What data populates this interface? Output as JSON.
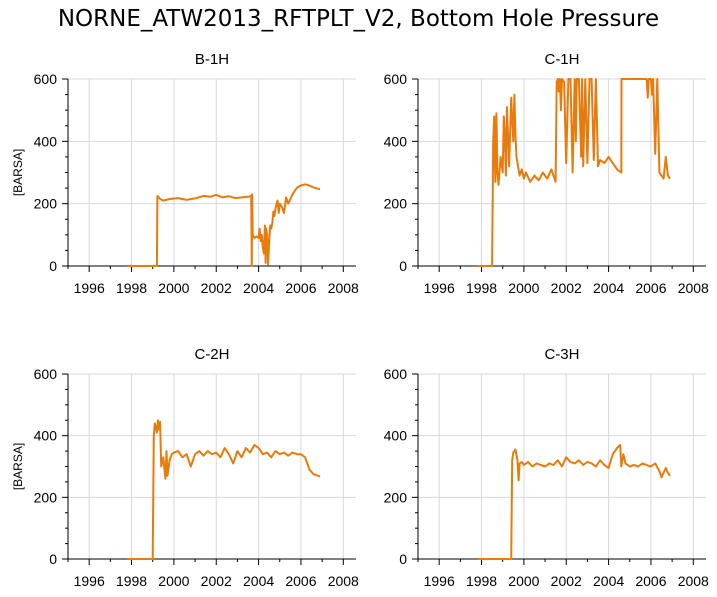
{
  "title": "NORNE_ATW2013_RFTPLT_V2, Bottom Hole Pressure",
  "colors": {
    "series": "#e87b0c",
    "grid": "#d9d9d9",
    "axis": "#000000"
  },
  "chart_data": [
    {
      "type": "line",
      "title": "B-1H",
      "ylabel": "[BARSA]",
      "xlim": [
        1995,
        2008.6
      ],
      "ylim": [
        0,
        600
      ],
      "xticks": [
        1996,
        1998,
        2000,
        2002,
        2004,
        2006,
        2008
      ],
      "yticks": [
        0,
        200,
        400,
        600
      ],
      "grid": true,
      "series": [
        {
          "x": [
            1997.8,
            1999.2,
            1999.22,
            1999.35,
            1999.5,
            1999.8,
            2000.2,
            2000.6,
            2001.0,
            2001.4,
            2001.7,
            2002.0,
            2002.3,
            2002.6,
            2002.9,
            2003.2,
            2003.5,
            2003.65,
            2003.68,
            2003.7,
            2003.72,
            2003.8,
            2003.9,
            2004.0,
            2004.05,
            2004.1,
            2004.15,
            2004.2,
            2004.25,
            2004.3,
            2004.33,
            2004.36,
            2004.4,
            2004.45,
            2004.5,
            2004.55,
            2004.6,
            2004.65,
            2004.7,
            2004.75,
            2004.8,
            2004.85,
            2004.9,
            2004.95,
            2005.0,
            2005.1,
            2005.2,
            2005.3,
            2005.4,
            2005.5,
            2005.6,
            2005.7,
            2005.8,
            2005.9,
            2006.0,
            2006.2,
            2006.4,
            2006.6,
            2006.8,
            2006.9
          ],
          "y": [
            0,
            0,
            225,
            215,
            210,
            215,
            218,
            212,
            217,
            225,
            222,
            228,
            220,
            224,
            218,
            220,
            222,
            225,
            0,
            230,
            100,
            90,
            95,
            90,
            120,
            80,
            100,
            60,
            40,
            130,
            10,
            120,
            100,
            5,
            80,
            130,
            120,
            140,
            175,
            160,
            185,
            200,
            210,
            170,
            200,
            190,
            170,
            220,
            200,
            215,
            230,
            240,
            250,
            255,
            258,
            262,
            258,
            252,
            248,
            246
          ]
        }
      ]
    },
    {
      "type": "line",
      "title": "C-1H",
      "ylabel": "",
      "xlim": [
        1995,
        2008.6
      ],
      "ylim": [
        0,
        600
      ],
      "xticks": [
        1996,
        1998,
        2000,
        2002,
        2004,
        2006,
        2008
      ],
      "yticks": [
        0,
        200,
        400,
        600
      ],
      "grid": true,
      "series": [
        {
          "x": [
            1997.8,
            1998.5,
            1998.55,
            1998.6,
            1998.65,
            1998.7,
            1998.75,
            1998.8,
            1998.9,
            1999.0,
            1999.05,
            1999.1,
            1999.15,
            1999.2,
            1999.25,
            1999.3,
            1999.4,
            1999.5,
            1999.55,
            1999.6,
            1999.65,
            1999.7,
            1999.8,
            1999.9,
            2000.0,
            2000.1,
            2000.3,
            2000.5,
            2000.7,
            2000.9,
            2001.1,
            2001.3,
            2001.5,
            2001.55,
            2001.6,
            2001.65,
            2001.7,
            2001.75,
            2001.8,
            2001.9,
            2002.0,
            2002.1,
            2002.2,
            2002.3,
            2002.4,
            2002.45,
            2002.5,
            2002.6,
            2002.7,
            2002.75,
            2002.8,
            2002.9,
            2003.0,
            2003.1,
            2003.2,
            2003.3,
            2003.4,
            2003.5,
            2003.6,
            2003.8,
            2004.0,
            2004.2,
            2004.4,
            2004.6,
            2004.61,
            2004.8,
            2005.0,
            2005.2,
            2005.4,
            2005.6,
            2005.8,
            2005.85,
            2005.9,
            2006.0,
            2006.05,
            2006.1,
            2006.2,
            2006.3,
            2006.4,
            2006.5,
            2006.6,
            2006.7,
            2006.8,
            2006.9
          ],
          "y": [
            0,
            0,
            400,
            480,
            270,
            490,
            300,
            260,
            350,
            300,
            480,
            420,
            290,
            510,
            420,
            320,
            540,
            400,
            550,
            420,
            350,
            330,
            290,
            310,
            280,
            300,
            270,
            290,
            275,
            300,
            280,
            310,
            270,
            590,
            600,
            560,
            600,
            500,
            600,
            590,
            330,
            600,
            600,
            300,
            600,
            400,
            600,
            600,
            350,
            600,
            320,
            600,
            330,
            600,
            600,
            340,
            600,
            320,
            340,
            330,
            350,
            330,
            310,
            300,
            600,
            600,
            600,
            600,
            600,
            600,
            600,
            540,
            600,
            600,
            550,
            600,
            360,
            600,
            300,
            290,
            280,
            350,
            290,
            280
          ]
        }
      ]
    },
    {
      "type": "line",
      "title": "C-2H",
      "ylabel": "[BARSA]",
      "xlim": [
        1995,
        2008.6
      ],
      "ylim": [
        0,
        600
      ],
      "xticks": [
        1996,
        1998,
        2000,
        2002,
        2004,
        2006,
        2008
      ],
      "yticks": [
        0,
        200,
        400,
        600
      ],
      "grid": true,
      "series": [
        {
          "x": [
            1997.8,
            1999.0,
            1999.05,
            1999.1,
            1999.2,
            1999.25,
            1999.3,
            1999.35,
            1999.4,
            1999.5,
            1999.6,
            1999.65,
            1999.7,
            1999.8,
            1999.9,
            2000.0,
            2000.2,
            2000.4,
            2000.6,
            2000.8,
            2001.0,
            2001.2,
            2001.4,
            2001.6,
            2001.8,
            2002.0,
            2002.2,
            2002.4,
            2002.6,
            2002.8,
            2003.0,
            2003.2,
            2003.4,
            2003.6,
            2003.8,
            2004.0,
            2004.2,
            2004.4,
            2004.6,
            2004.8,
            2005.0,
            2005.2,
            2005.4,
            2005.6,
            2005.8,
            2006.0,
            2006.2,
            2006.4,
            2006.6,
            2006.8,
            2006.9
          ],
          "y": [
            0,
            0,
            400,
            440,
            410,
            450,
            420,
            445,
            300,
            330,
            260,
            350,
            270,
            320,
            340,
            345,
            350,
            330,
            340,
            300,
            340,
            350,
            335,
            350,
            340,
            345,
            330,
            360,
            340,
            310,
            350,
            330,
            360,
            345,
            370,
            360,
            340,
            345,
            330,
            350,
            340,
            345,
            335,
            345,
            340,
            340,
            330,
            290,
            275,
            270,
            268
          ]
        }
      ]
    },
    {
      "type": "line",
      "title": "C-3H",
      "ylabel": "",
      "xlim": [
        1995,
        2008.6
      ],
      "ylim": [
        0,
        600
      ],
      "xticks": [
        1996,
        1998,
        2000,
        2002,
        2004,
        2006,
        2008
      ],
      "yticks": [
        0,
        200,
        400,
        600
      ],
      "grid": true,
      "series": [
        {
          "x": [
            1997.8,
            1999.4,
            1999.45,
            1999.5,
            1999.6,
            1999.7,
            1999.75,
            1999.8,
            1999.9,
            2000.0,
            2000.2,
            2000.4,
            2000.6,
            2000.8,
            2001.0,
            2001.2,
            2001.4,
            2001.6,
            2001.8,
            2002.0,
            2002.2,
            2002.4,
            2002.6,
            2002.8,
            2003.0,
            2003.2,
            2003.4,
            2003.6,
            2003.8,
            2004.0,
            2004.2,
            2004.4,
            2004.55,
            2004.6,
            2004.7,
            2004.8,
            2005.0,
            2005.2,
            2005.4,
            2005.6,
            2005.8,
            2006.0,
            2006.2,
            2006.4,
            2006.5,
            2006.6,
            2006.7,
            2006.8,
            2006.9
          ],
          "y": [
            0,
            0,
            320,
            345,
            355,
            320,
            255,
            310,
            315,
            305,
            315,
            300,
            310,
            305,
            300,
            310,
            305,
            320,
            300,
            330,
            315,
            310,
            320,
            305,
            315,
            310,
            300,
            320,
            305,
            295,
            340,
            360,
            370,
            300,
            340,
            310,
            300,
            305,
            300,
            310,
            305,
            300,
            310,
            285,
            265,
            280,
            295,
            280,
            270
          ]
        }
      ]
    }
  ]
}
